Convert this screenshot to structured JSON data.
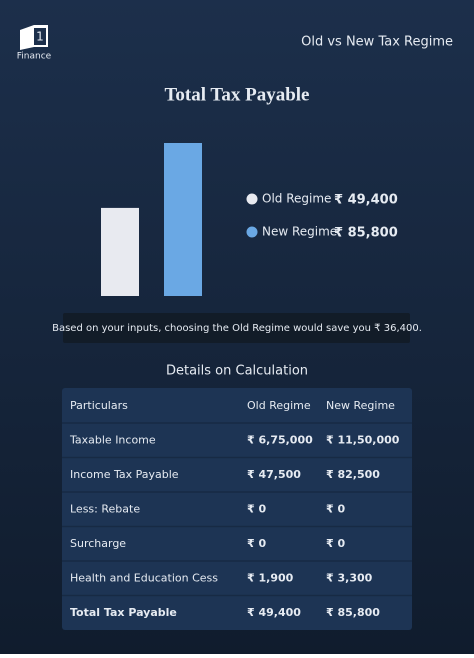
{
  "header": {
    "logo": "1",
    "brand": "Finance",
    "title": "Old vs New Tax Regime"
  },
  "chart_data": {
    "type": "bar",
    "title": "Total Tax Payable",
    "categories": [
      "Old Regime",
      "New Regime"
    ],
    "values": [
      49400,
      85800
    ],
    "value_labels": [
      "₹ 49,400",
      "₹ 85,800"
    ],
    "colors": [
      "#e8eaf0",
      "#6aa8e4"
    ]
  },
  "note": "Based on your inputs, choosing the Old Regime would save you ₹ 36,400.",
  "table": {
    "title": "Details on Calculation",
    "columns": [
      "Particulars",
      "Old Regime",
      "New Regime"
    ],
    "rows": [
      [
        "Taxable Income",
        "₹ 6,75,000",
        "₹ 11,50,000"
      ],
      [
        "Income Tax Payable",
        "₹ 47,500",
        "₹ 82,500"
      ],
      [
        "Less: Rebate",
        "₹ 0",
        "₹ 0"
      ],
      [
        "Surcharge",
        "₹ 0",
        "₹ 0"
      ],
      [
        "Health and Education Cess",
        "₹ 1,900",
        "₹ 3,300"
      ],
      [
        "Total Tax Payable",
        "₹ 49,400",
        "₹ 85,800"
      ]
    ]
  }
}
